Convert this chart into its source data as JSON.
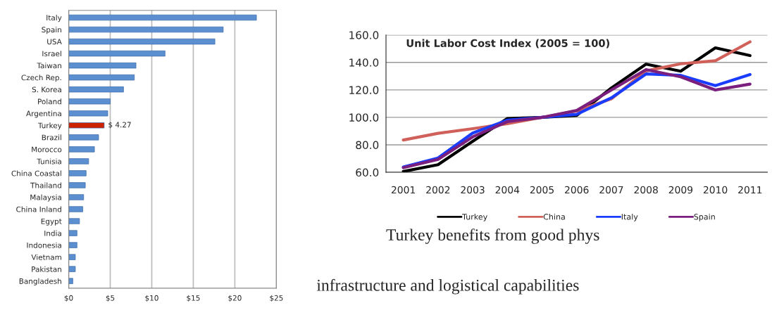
{
  "chart_data": [
    {
      "type": "bar",
      "orientation": "horizontal",
      "categories": [
        "Italy",
        "Spain",
        "USA",
        "Israel",
        "Taiwan",
        "Czech Rep.",
        "S. Korea",
        "Poland",
        "Argentina",
        "Turkey",
        "Brazil",
        "Morocco",
        "Tunisia",
        "China Coastal",
        "Thailand",
        "Malaysia",
        "China Inland",
        "Egypt",
        "India",
        "Indonesia",
        "Vietnam",
        "Pakistan",
        "Bangladesh"
      ],
      "values": [
        22.6,
        18.6,
        17.6,
        11.6,
        8.1,
        7.9,
        6.6,
        5.0,
        4.7,
        4.27,
        3.6,
        3.1,
        2.4,
        2.1,
        2.0,
        1.8,
        1.7,
        1.3,
        1.0,
        1.0,
        0.8,
        0.8,
        0.5
      ],
      "colors": [
        "#5b8fd0",
        "#5b8fd0",
        "#5b8fd0",
        "#5b8fd0",
        "#5b8fd0",
        "#5b8fd0",
        "#5b8fd0",
        "#5b8fd0",
        "#5b8fd0",
        "#cc2200",
        "#5b8fd0",
        "#5b8fd0",
        "#5b8fd0",
        "#5b8fd0",
        "#5b8fd0",
        "#5b8fd0",
        "#5b8fd0",
        "#5b8fd0",
        "#5b8fd0",
        "#5b8fd0",
        "#5b8fd0",
        "#5b8fd0",
        "#5b8fd0"
      ],
      "value_labels": [
        null,
        null,
        null,
        null,
        null,
        null,
        null,
        null,
        null,
        "$ 4.27",
        null,
        null,
        null,
        null,
        null,
        null,
        null,
        null,
        null,
        null,
        null,
        null,
        null
      ],
      "xlim": [
        0,
        25
      ],
      "xticks": [
        {
          "value": 0,
          "label": "$0"
        },
        {
          "value": 5,
          "label": "$5"
        },
        {
          "value": 10,
          "label": "$10"
        },
        {
          "value": 15,
          "label": "$15"
        },
        {
          "value": 20,
          "label": "$20"
        },
        {
          "value": 25,
          "label": "$25"
        }
      ],
      "grid": "x"
    },
    {
      "type": "line",
      "title": "Unit Labor Cost Index (2005 = 100)",
      "categories": [
        "2001",
        "2002",
        "2003",
        "2004",
        "2005",
        "2006",
        "2007",
        "2008",
        "2009",
        "2010",
        "2011"
      ],
      "series": [
        {
          "name": "Turkey",
          "color": "#000000",
          "values": [
            60.6,
            65.5,
            82.6,
            99.2,
            100,
            101.4,
            121.4,
            138.7,
            133.6,
            150.6,
            145
          ]
        },
        {
          "name": "China",
          "color": "#d0605a",
          "values": [
            83.5,
            88.4,
            91.8,
            95.4,
            100,
            104.7,
            113.5,
            133.8,
            139,
            141.2,
            155
          ]
        },
        {
          "name": "Italy",
          "color": "#1a3cff",
          "values": [
            63.8,
            70.4,
            88.6,
            98,
            100,
            102.2,
            114.2,
            131.6,
            130.6,
            123.1,
            131.2
          ]
        },
        {
          "name": "Spain",
          "color": "#7b1f7e",
          "values": [
            63.4,
            69.4,
            85.8,
            96.9,
            100,
            105,
            119.9,
            134.8,
            129.5,
            119.9,
            124.2
          ]
        }
      ],
      "ylim": [
        60,
        160
      ],
      "yticks": [
        {
          "value": 60,
          "label": "60.0"
        },
        {
          "value": 80,
          "label": "80.0"
        },
        {
          "value": 100,
          "label": "100.0"
        },
        {
          "value": 120,
          "label": "120.0"
        },
        {
          "value": 140,
          "label": "140.0"
        },
        {
          "value": 160,
          "label": "160.0"
        }
      ],
      "grid": "y",
      "legend": "bottom",
      "line_style": "solid",
      "marker": "none",
      "annotations": [
        "Turkey benefits from good phys",
        "infrastructure and logistical capabilities"
      ]
    }
  ]
}
